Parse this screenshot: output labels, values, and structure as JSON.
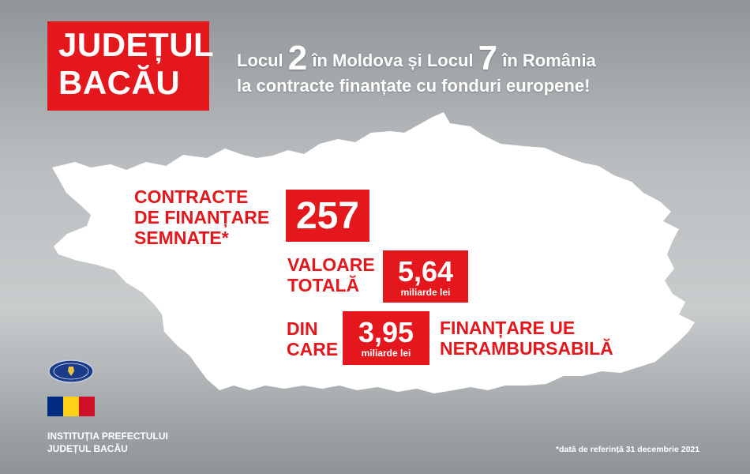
{
  "title": {
    "line1": "JUDEȚUL",
    "line2": "BACĂU"
  },
  "headline": {
    "part1": "Locul ",
    "rank_moldova": "2",
    "part2": " în Moldova și Locul ",
    "rank_romania": "7",
    "part3": " în România",
    "line2": "la contracte finanțate cu fonduri europene!"
  },
  "stats": {
    "contracts_label": [
      "CONTRACTE",
      "DE FINANȚARE",
      "SEMNATE*"
    ],
    "contracts_value": "257",
    "total_label": [
      "VALOARE",
      "TOTALĂ"
    ],
    "total_value": "5,64",
    "total_unit": "miliarde lei",
    "din_label": [
      "DIN",
      "CARE"
    ],
    "eu_value": "3,95",
    "eu_unit": "miliarde lei",
    "eu_label": [
      "FINANȚARE UE",
      "NERAMBURSABILĂ"
    ]
  },
  "institution": {
    "line1": "INSTITUȚIA PREFECTULUI",
    "line2": "JUDEȚUL BACĂU"
  },
  "footnote": "*dată de referință 31 decembrie 2021",
  "colors": {
    "accent": "#e3171c",
    "flag": [
      "#002b7f",
      "#fcd116",
      "#ce1126"
    ]
  },
  "icons": {
    "emblem": "government-emblem-icon",
    "flag": "romania-flag-icon"
  }
}
